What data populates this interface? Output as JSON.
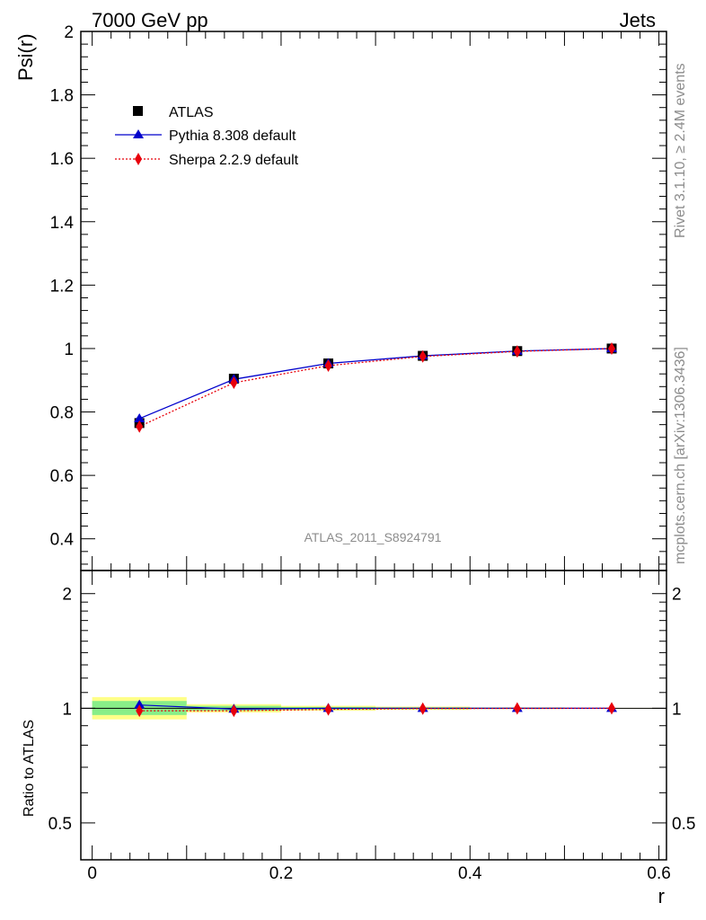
{
  "header": {
    "left": "7000 GeV pp",
    "right": "Jets"
  },
  "side_text": {
    "rivet": "Rivet 3.1.10, ≥ 2.4M events",
    "source": "mcplots.cern.ch [arXiv:1306.3436]"
  },
  "watermark": "ATLAS_2011_S8924791",
  "chart_data": [
    {
      "type": "line",
      "panel": "main",
      "ylabel": "Psi(r)",
      "xlabel": "r",
      "xlim": [
        -0.012,
        0.608
      ],
      "ylim": [
        0.3,
        2.0
      ],
      "yticks": [
        0.4,
        0.6,
        0.8,
        1.0,
        1.2,
        1.4,
        1.6,
        1.8,
        2.0
      ],
      "ytick_labels": [
        "0.4",
        "0.6",
        "0.8",
        "1",
        "1.2",
        "1.4",
        "1.6",
        "1.8",
        "2"
      ],
      "legend_position": "top-left",
      "x": [
        0.05,
        0.15,
        0.25,
        0.35,
        0.45,
        0.55
      ],
      "series": [
        {
          "name": "ATLAS",
          "style": "black-square-marker",
          "color": "#000000",
          "values": [
            0.765,
            0.905,
            0.953,
            0.977,
            0.992,
            1.0
          ]
        },
        {
          "name": "Pythia 8.308 default",
          "style": "blue-solid-triangle",
          "color": "#0000cc",
          "values": [
            0.779,
            0.903,
            0.953,
            0.977,
            0.992,
            1.0
          ]
        },
        {
          "name": "Sherpa 2.2.9 default",
          "style": "red-dotted-diamond",
          "color": "#e8000b",
          "values": [
            0.754,
            0.892,
            0.946,
            0.975,
            0.991,
            1.0
          ]
        }
      ]
    },
    {
      "type": "line",
      "panel": "ratio",
      "ylabel": "Ratio to ATLAS",
      "xlabel": "r",
      "xlim": [
        -0.012,
        0.608
      ],
      "scale": "log",
      "ylim": [
        0.4,
        2.3
      ],
      "yticks": [
        0.5,
        1,
        2
      ],
      "ytick_labels": [
        "0.5",
        "1",
        "2"
      ],
      "xticks": [
        0,
        0.2,
        0.4,
        0.6
      ],
      "xtick_labels": [
        "0",
        "0.2",
        "0.4",
        "0.6"
      ],
      "x": [
        0.05,
        0.15,
        0.25,
        0.35,
        0.45,
        0.55
      ],
      "bands": [
        {
          "x0": 0.0,
          "x1": 0.1,
          "outer": [
            0.935,
            1.07
          ],
          "inner": [
            0.96,
            1.045
          ]
        },
        {
          "x0": 0.1,
          "x1": 0.2,
          "outer": [
            0.975,
            1.025
          ],
          "inner": [
            0.985,
            1.015
          ]
        },
        {
          "x0": 0.2,
          "x1": 0.3,
          "outer": [
            0.985,
            1.015
          ],
          "inner": [
            0.992,
            1.008
          ]
        },
        {
          "x0": 0.3,
          "x1": 0.4,
          "outer": [
            0.99,
            1.01
          ],
          "inner": [
            0.995,
            1.005
          ]
        },
        {
          "x0": 0.4,
          "x1": 0.5,
          "outer": [
            0.995,
            1.005
          ],
          "inner": [
            0.997,
            1.003
          ]
        },
        {
          "x0": 0.5,
          "x1": 0.6,
          "outer": [
            0.998,
            1.002
          ],
          "inner": [
            0.999,
            1.001
          ]
        }
      ],
      "band_colors": {
        "outer": "#ffff88",
        "inner": "#88ee88"
      },
      "series": [
        {
          "name": "Pythia 8.308 default",
          "color": "#0000cc",
          "values": [
            1.02,
            0.995,
            1.0,
            1.0,
            1.0,
            1.0
          ]
        },
        {
          "name": "Sherpa 2.2.9 default",
          "color": "#e8000b",
          "values": [
            0.985,
            0.985,
            0.993,
            0.998,
            0.999,
            1.0
          ]
        }
      ]
    }
  ]
}
